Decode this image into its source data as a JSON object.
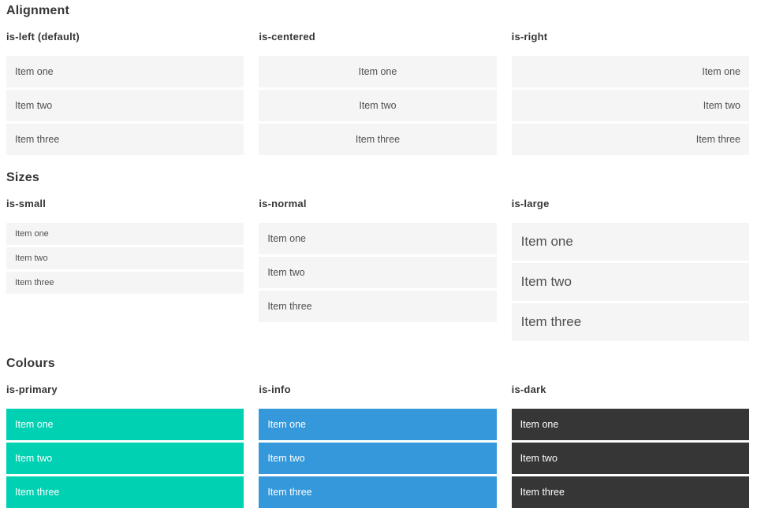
{
  "sections": [
    {
      "title": "Alignment",
      "columns": [
        {
          "heading": "is-left (default)",
          "items": [
            "Item one",
            "Item two",
            "Item three"
          ]
        },
        {
          "heading": "is-centered",
          "items": [
            "Item one",
            "Item two",
            "Item three"
          ]
        },
        {
          "heading": "is-right",
          "items": [
            "Item one",
            "Item two",
            "Item three"
          ]
        }
      ]
    },
    {
      "title": "Sizes",
      "columns": [
        {
          "heading": "is-small",
          "items": [
            "Item one",
            "Item two",
            "Item three"
          ]
        },
        {
          "heading": "is-normal",
          "items": [
            "Item one",
            "Item two",
            "Item three"
          ]
        },
        {
          "heading": "is-large",
          "items": [
            "Item one",
            "Item two",
            "Item three"
          ]
        }
      ]
    },
    {
      "title": "Colours",
      "columns": [
        {
          "heading": "is-primary",
          "items": [
            "Item one",
            "Item two",
            "Item three"
          ]
        },
        {
          "heading": "is-info",
          "items": [
            "Item one",
            "Item two",
            "Item three"
          ]
        },
        {
          "heading": "is-dark",
          "items": [
            "Item one",
            "Item two",
            "Item three"
          ]
        }
      ]
    }
  ],
  "colors": {
    "primary": "#00d1b2",
    "info": "#3498db",
    "dark": "#363636",
    "item_background": "#f5f5f5",
    "item_text": "#4f4f4f",
    "heading_text": "#363636"
  }
}
